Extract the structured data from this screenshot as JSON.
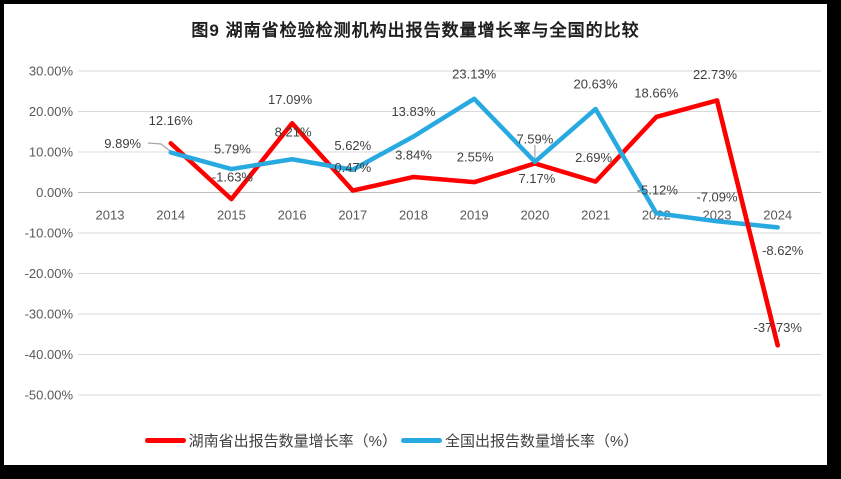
{
  "title": "图9 湖南省检验检测机构出报告数量增长率与全国的比较",
  "colors": {
    "frame": "#000000",
    "background": "#ffffff",
    "gridline": "#d9d9d9",
    "zero_line": "#bfbfbf",
    "axis_label": "#595959",
    "data_label": "#404040",
    "leader_line": "#a6a6a6",
    "hunan_red": "#ff0000",
    "national_blue": "#28aae1"
  },
  "chart_data": {
    "type": "line",
    "title": "图9 湖南省检验检测机构出报告数量增长率与全国的比较",
    "categories": [
      "2013",
      "2014",
      "2015",
      "2016",
      "2017",
      "2018",
      "2019",
      "2020",
      "2021",
      "2022",
      "2023",
      "2024"
    ],
    "series": [
      {
        "key": "hunan",
        "name": "湖南省出报告数量增长率（%）",
        "color": "#ff0000",
        "start_index": 1,
        "values": [
          12.16,
          -1.63,
          17.09,
          0.47,
          3.84,
          2.55,
          7.17,
          2.69,
          18.66,
          22.73,
          -37.73
        ],
        "labels": [
          "12.16%",
          "-1.63%",
          "17.09%",
          "0.47%",
          "3.84%",
          "2.55%",
          "7.17%",
          "2.69%",
          "18.66%",
          "22.73%",
          "-37.73%"
        ]
      },
      {
        "key": "national",
        "name": "全国出报告数量增长率（%）",
        "color": "#28aae1",
        "start_index": 1,
        "values": [
          9.89,
          5.79,
          8.21,
          5.62,
          13.83,
          23.13,
          7.59,
          20.63,
          -5.12,
          -7.09,
          -8.62
        ],
        "labels": [
          "9.89%",
          "5.79%",
          "8.21%",
          "5.62%",
          "13.83%",
          "23.13%",
          "7.59%",
          "20.63%",
          "-5.12%",
          "-7.09%",
          "-8.62%"
        ]
      }
    ],
    "ylim": [
      -50,
      30
    ],
    "ytick_step": 10,
    "ytick_labels": [
      "30.00%",
      "20.00%",
      "10.00%",
      "0.00%",
      "-10.00%",
      "-20.00%",
      "-30.00%",
      "-40.00%",
      "-50.00%"
    ],
    "xlabel": "",
    "ylabel": "",
    "grid": true,
    "data_labels": true,
    "legend_position": "bottom"
  }
}
